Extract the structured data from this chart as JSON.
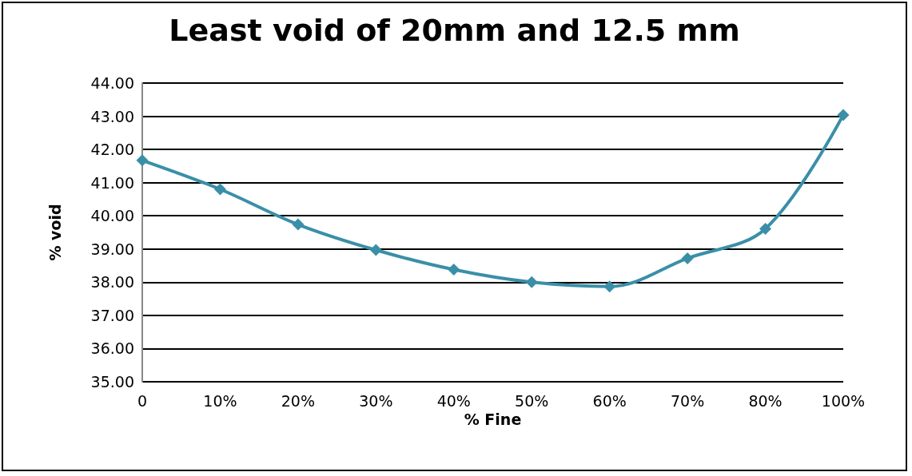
{
  "chart_data": {
    "type": "line",
    "title": "Least void of 20mm and 12.5 mm",
    "xlabel": "% Fine",
    "ylabel": "% void",
    "categories": [
      "0",
      "10%",
      "20%",
      "30%",
      "40%",
      "50%",
      "60%",
      "70%",
      "80%",
      "100%"
    ],
    "series": [
      {
        "color": "#3a8fa8",
        "values": [
          41.67,
          40.8,
          39.74,
          38.97,
          38.38,
          38.0,
          37.87,
          38.72,
          39.61,
          43.04
        ]
      }
    ],
    "ylim": [
      35,
      44
    ],
    "yticks": [
      {
        "value": 35,
        "label": "35.00"
      },
      {
        "value": 36,
        "label": "36.00"
      },
      {
        "value": 37,
        "label": "37.00"
      },
      {
        "value": 38,
        "label": "38.00"
      },
      {
        "value": 39,
        "label": "39.00"
      },
      {
        "value": 40,
        "label": "40.00"
      },
      {
        "value": 41,
        "label": "41.00"
      },
      {
        "value": 42,
        "label": "42.00"
      },
      {
        "value": 43,
        "label": "43.00"
      },
      {
        "value": 44,
        "label": "44.00"
      }
    ],
    "grid": "y",
    "marker": "diamond",
    "line_style": "solid"
  }
}
